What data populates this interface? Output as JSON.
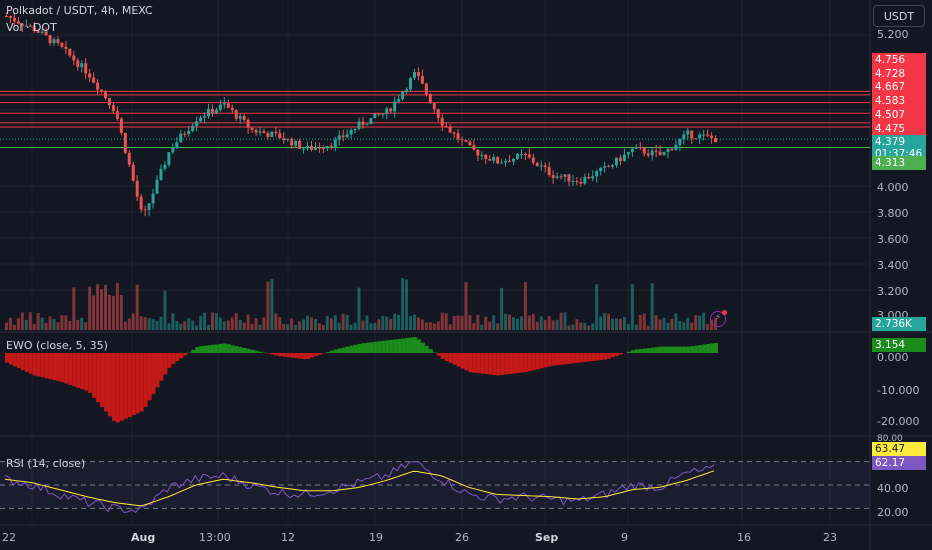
{
  "symbol_title": "Polkadot / USDT, 4h, MEXC",
  "vol_label": "Vol · DOT",
  "ewo_label": "EWO (close, 5, 35)",
  "rsi_label": "RSI (14, close)",
  "currency": "USDT",
  "colors": {
    "up": "#26a69a",
    "down": "#ef5350",
    "ewo_up": "#1b8c1b",
    "ewo_down": "#c31919",
    "rsi": "#7e57c2",
    "rsi_ma": "#ffeb3b",
    "level": "#f23645"
  },
  "price_axis_ticks": [
    "5.200",
    "4.000",
    "3.800",
    "3.600",
    "3.400",
    "3.200",
    "3.000"
  ],
  "level_tags": [
    "4.756",
    "4.728",
    "4.667",
    "4.583",
    "4.507",
    "4.475"
  ],
  "current_price": "4.379",
  "countdown": "01:37:46",
  "support_tag": "4.313",
  "volume_tag": "2.736K",
  "ewo_tag": "3.154",
  "ewo_axis_ticks": [
    "0.000",
    "-10.000",
    "-20.000"
  ],
  "rsi_tags": {
    "upper": "63.47",
    "lower": "62.17",
    "partial_top": "80.00"
  },
  "rsi_axis_ticks": [
    "40.00",
    "20.00"
  ],
  "time_axis": [
    {
      "label": "22"
    },
    {
      "label": "Aug"
    },
    {
      "label": "13:00"
    },
    {
      "label": "12"
    },
    {
      "label": "19"
    },
    {
      "label": "26"
    },
    {
      "label": "Sep"
    },
    {
      "label": "9"
    },
    {
      "label": "16"
    },
    {
      "label": "23"
    }
  ],
  "chart_data": {
    "type": "candlestick",
    "title": "Polkadot / USDT, 4h, MEXC",
    "price_series": [
      {
        "t": "Jul 27",
        "close": 5.35
      },
      {
        "t": "Jul 29",
        "close": 5.25
      },
      {
        "t": "Jul 31",
        "close": 5.1
      },
      {
        "t": "Aug 2",
        "close": 4.9
      },
      {
        "t": "Aug 4",
        "close": 4.6
      },
      {
        "t": "Aug 5",
        "close": 3.75
      },
      {
        "t": "Aug 7",
        "close": 4.3
      },
      {
        "t": "Aug 9",
        "close": 4.55
      },
      {
        "t": "Aug 11",
        "close": 4.65
      },
      {
        "t": "Aug 13",
        "close": 4.45
      },
      {
        "t": "Aug 15",
        "close": 4.4
      },
      {
        "t": "Aug 17",
        "close": 4.3
      },
      {
        "t": "Aug 19",
        "close": 4.35
      },
      {
        "t": "Aug 21",
        "close": 4.5
      },
      {
        "t": "Aug 23",
        "close": 4.6
      },
      {
        "t": "Aug 24",
        "close": 4.9
      },
      {
        "t": "Aug 26",
        "close": 4.5
      },
      {
        "t": "Aug 28",
        "close": 4.3
      },
      {
        "t": "Aug 30",
        "close": 4.2
      },
      {
        "t": "Sep 1",
        "close": 4.25
      },
      {
        "t": "Sep 3",
        "close": 4.1
      },
      {
        "t": "Sep 5",
        "close": 4.05
      },
      {
        "t": "Sep 7",
        "close": 4.15
      },
      {
        "t": "Sep 9",
        "close": 4.3
      },
      {
        "t": "Sep 11",
        "close": 4.25
      },
      {
        "t": "Sep 13",
        "close": 4.42
      },
      {
        "t": "Sep 14",
        "close": 4.38
      }
    ],
    "horizontal_levels": [
      4.756,
      4.728,
      4.667,
      4.583,
      4.507,
      4.475
    ],
    "support_level": 4.313,
    "ewo_series": [
      -3,
      -7,
      -9,
      -12,
      -22,
      -18,
      -4,
      2,
      3,
      1,
      -1,
      -2,
      1,
      3,
      4,
      5,
      -2,
      -6,
      -7,
      -6,
      -4,
      -3,
      -2,
      1,
      2,
      2,
      3.154
    ],
    "rsi_series": [
      55,
      50,
      42,
      35,
      30,
      28,
      48,
      55,
      58,
      50,
      44,
      42,
      46,
      52,
      58,
      70,
      55,
      42,
      38,
      40,
      38,
      36,
      42,
      50,
      48,
      60,
      63.47
    ],
    "rsi_ma_series": [
      55,
      52,
      46,
      40,
      35,
      32,
      40,
      50,
      55,
      52,
      48,
      45,
      45,
      48,
      54,
      62,
      58,
      48,
      42,
      41,
      40,
      38,
      40,
      46,
      48,
      54,
      62.17
    ],
    "ylim": [
      3.6,
      5.2
    ]
  }
}
